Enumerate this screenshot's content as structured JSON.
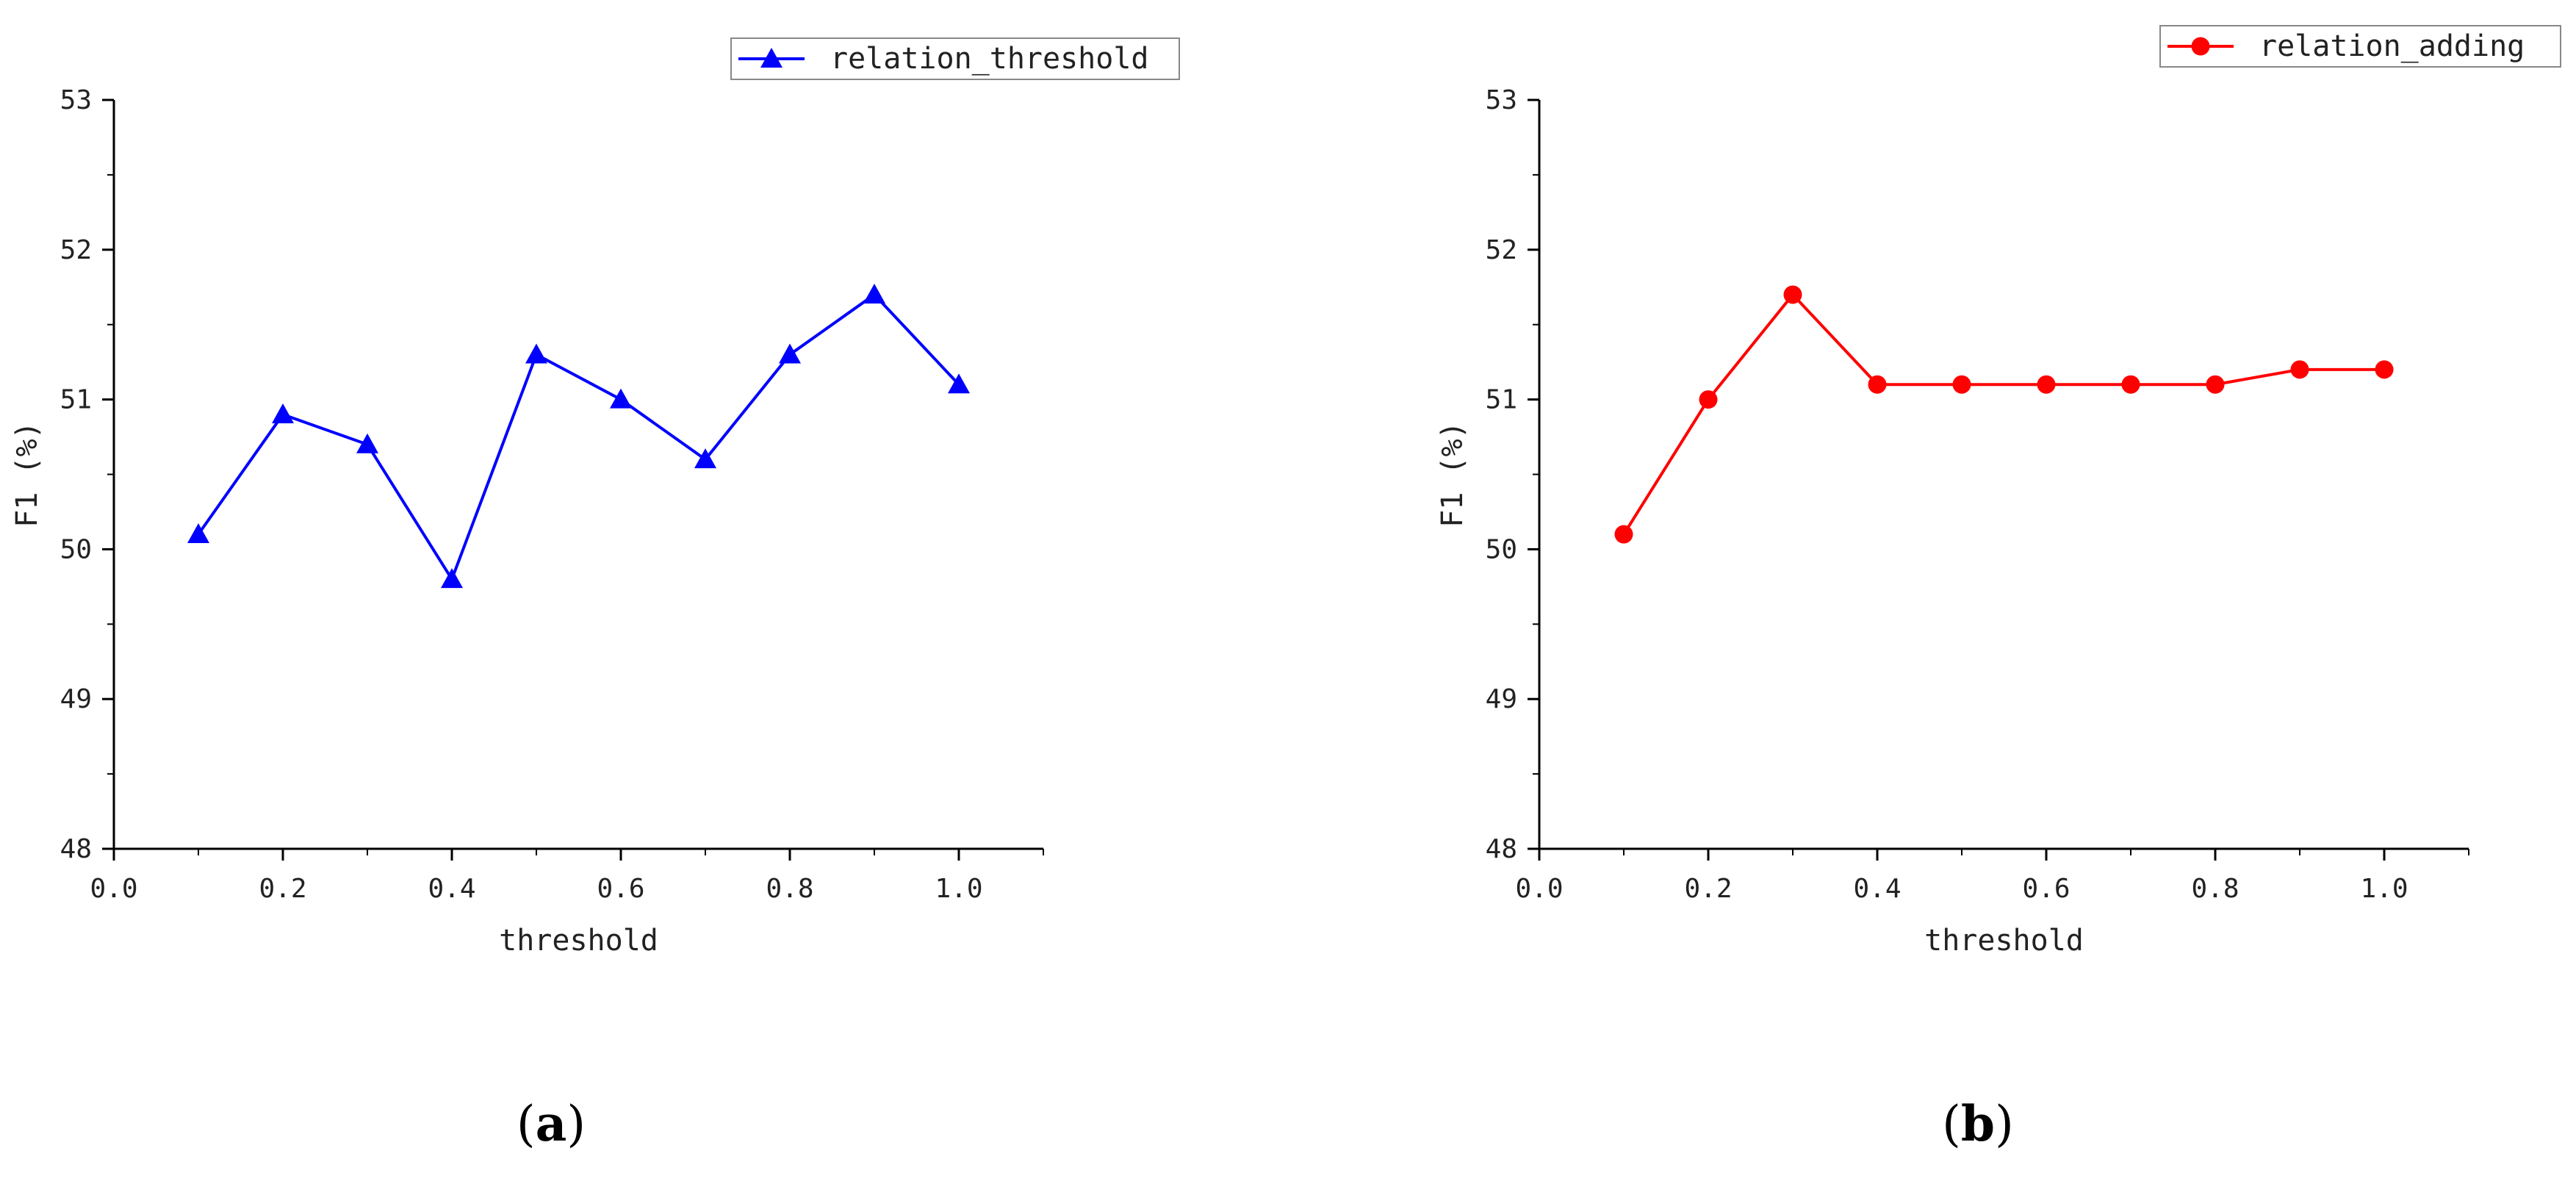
{
  "chart_data": [
    {
      "type": "line",
      "panel_label_open": "(",
      "panel_label_letter": "a",
      "panel_label_close": ")",
      "xlabel": "threshold",
      "ylabel": "F1 (%)",
      "xlim": [
        0.0,
        1.1
      ],
      "ylim": [
        48,
        53
      ],
      "x_ticks": [
        "0.0",
        "0.2",
        "0.4",
        "0.6",
        "0.8",
        "1.0"
      ],
      "y_ticks": [
        "48",
        "49",
        "50",
        "51",
        "52",
        "53"
      ],
      "grid": false,
      "legend_position": "top-right",
      "series": [
        {
          "name": "relation_threshold",
          "color": "#0000ff",
          "marker": "triangle",
          "x": [
            0.1,
            0.2,
            0.3,
            0.4,
            0.5,
            0.6,
            0.7,
            0.8,
            0.9,
            1.0
          ],
          "y": [
            50.1,
            50.9,
            50.7,
            49.8,
            51.3,
            51.0,
            50.6,
            51.3,
            51.7,
            51.1
          ]
        }
      ]
    },
    {
      "type": "line",
      "panel_label_open": "(",
      "panel_label_letter": "b",
      "panel_label_close": ")",
      "xlabel": "threshold",
      "ylabel": "F1 (%)",
      "xlim": [
        0.0,
        1.1
      ],
      "ylim": [
        48,
        53
      ],
      "x_ticks": [
        "0.0",
        "0.2",
        "0.4",
        "0.6",
        "0.8",
        "1.0"
      ],
      "y_ticks": [
        "48",
        "49",
        "50",
        "51",
        "52",
        "53"
      ],
      "grid": false,
      "legend_position": "top-right",
      "series": [
        {
          "name": "relation_adding",
          "color": "#ff0000",
          "marker": "circle",
          "x": [
            0.1,
            0.2,
            0.3,
            0.4,
            0.5,
            0.6,
            0.7,
            0.8,
            0.9,
            1.0
          ],
          "y": [
            50.1,
            51.0,
            51.7,
            51.1,
            51.1,
            51.1,
            51.1,
            51.1,
            51.2,
            51.2
          ]
        }
      ]
    }
  ]
}
